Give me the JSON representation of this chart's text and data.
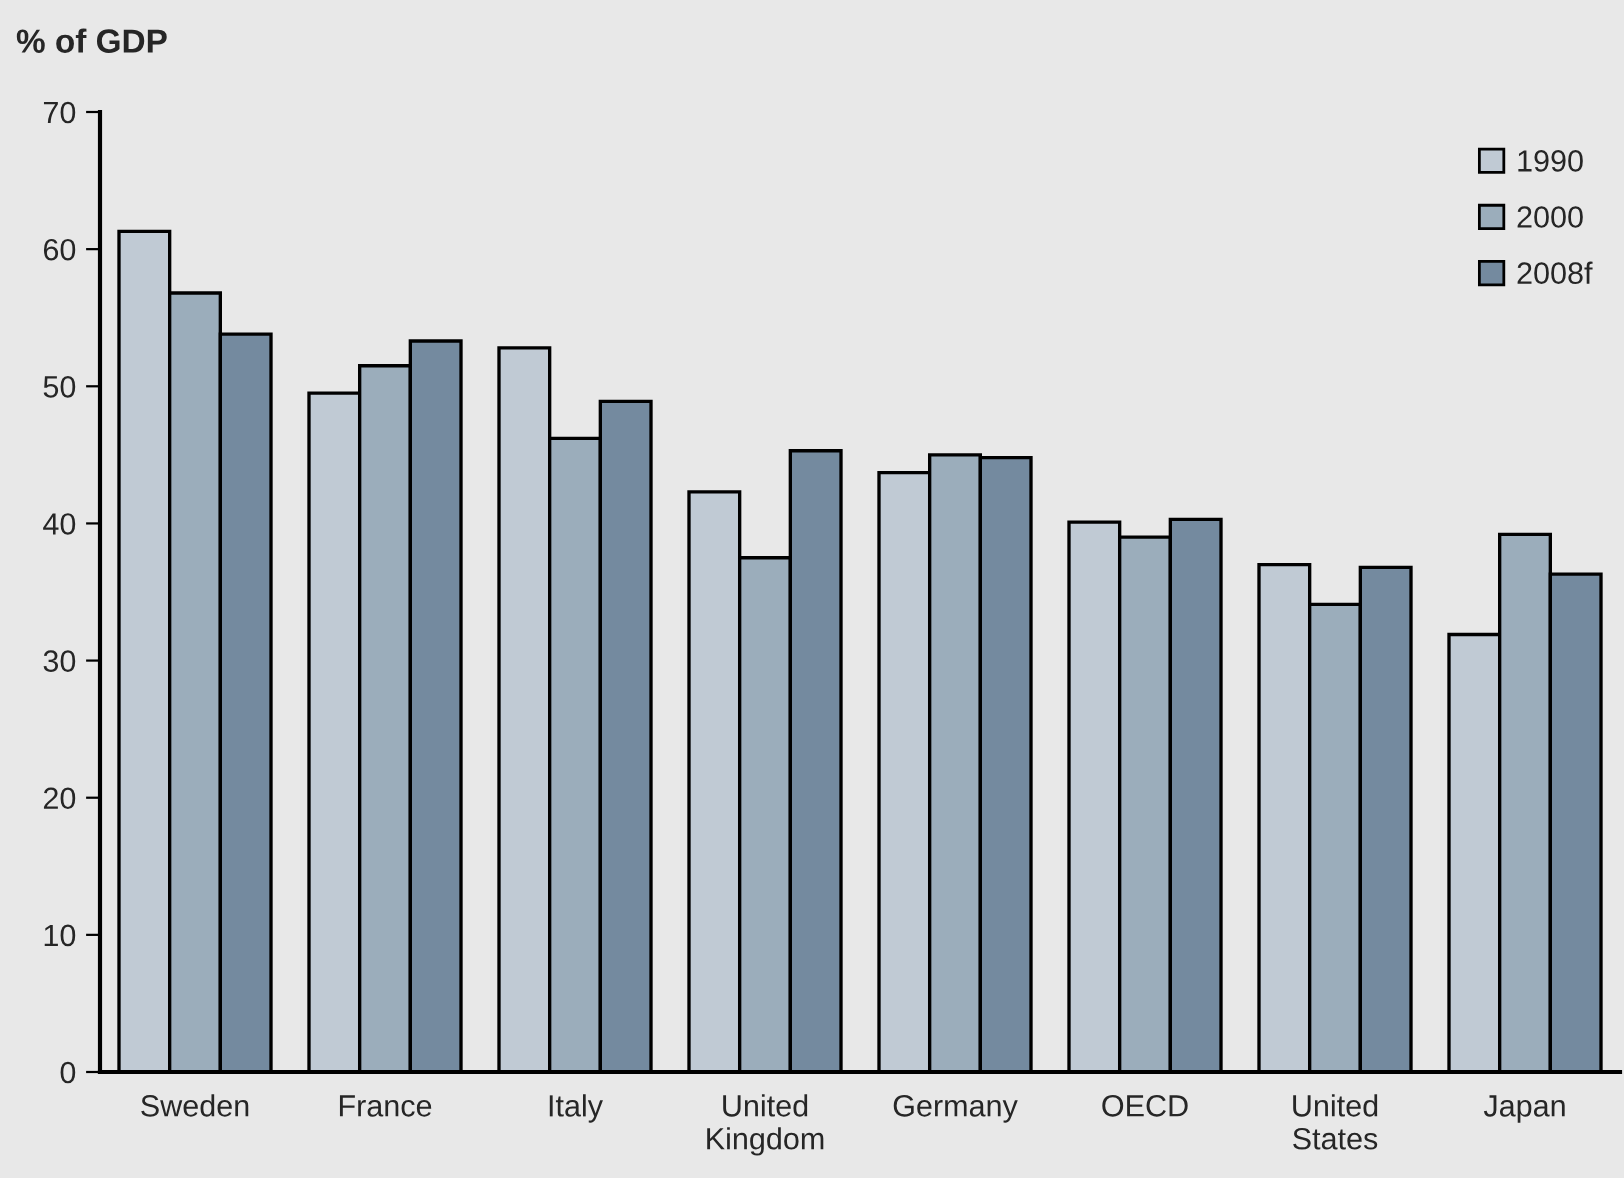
{
  "chart_data": {
    "type": "bar",
    "ylabel": "% of GDP",
    "categories": [
      "Sweden",
      "France",
      "Italy",
      "United\nKingdom",
      "Germany",
      "OECD",
      "United\nStates",
      "Japan"
    ],
    "series": [
      {
        "name": "1990",
        "color": "#c0cad4",
        "values": [
          61.3,
          49.5,
          52.8,
          42.3,
          43.7,
          40.1,
          37.0,
          31.9
        ]
      },
      {
        "name": "2000",
        "color": "#9badbb",
        "values": [
          56.8,
          51.5,
          46.2,
          37.5,
          45.0,
          39.0,
          34.1,
          39.2
        ]
      },
      {
        "name": "2008f",
        "color": "#748a9f",
        "values": [
          53.8,
          53.3,
          48.9,
          45.3,
          44.8,
          40.3,
          36.8,
          36.3
        ]
      }
    ],
    "ylim": [
      0,
      70
    ],
    "yticks": [
      0,
      10,
      20,
      30,
      40,
      50,
      60,
      70
    ],
    "grid": false,
    "legend": "top right"
  }
}
